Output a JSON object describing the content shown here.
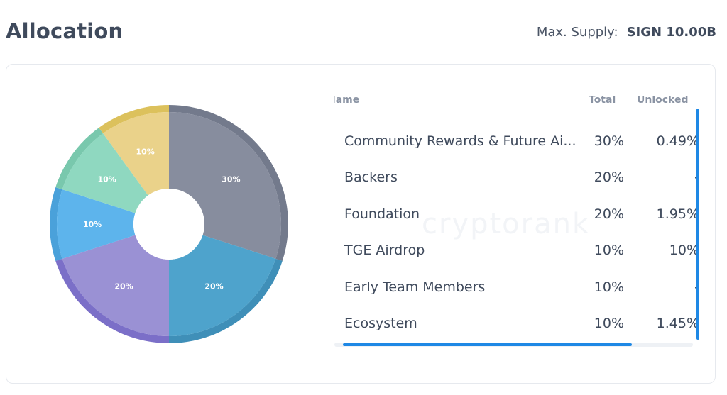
{
  "header": {
    "title": "Allocation",
    "supply_label": "Max. Supply:",
    "supply_value": "SIGN 10.00B"
  },
  "watermark": "cryptorank",
  "table": {
    "columns": [
      "Name",
      "Total",
      "Unlocked"
    ],
    "rows": [
      {
        "name": "Community Rewards & Future Ai...",
        "total": "30%",
        "unlocked": "0.49%"
      },
      {
        "name": "Backers",
        "total": "20%",
        "unlocked": "-"
      },
      {
        "name": "Foundation",
        "total": "20%",
        "unlocked": "1.95%"
      },
      {
        "name": "TGE Airdrop",
        "total": "10%",
        "unlocked": "10%"
      },
      {
        "name": "Early Team Members",
        "total": "10%",
        "unlocked": "-"
      },
      {
        "name": "Ecosystem",
        "total": "10%",
        "unlocked": "1.45%"
      }
    ]
  },
  "chart_data": {
    "type": "pie",
    "donut": true,
    "slices": [
      {
        "label": "30%",
        "value": 30,
        "color": "#878d9e",
        "shadow": "#737a8c"
      },
      {
        "label": "20%",
        "value": 20,
        "color": "#4ea3cc",
        "shadow": "#3f8fb8"
      },
      {
        "label": "20%",
        "value": 20,
        "color": "#9a91d4",
        "shadow": "#7b6fc8"
      },
      {
        "label": "10%",
        "value": 10,
        "color": "#5db4ec",
        "shadow": "#4aa1da"
      },
      {
        "label": "10%",
        "value": 10,
        "color": "#8fd8c0",
        "shadow": "#79c8ad"
      },
      {
        "label": "10%",
        "value": 10,
        "color": "#ead28a",
        "shadow": "#dcc15c"
      }
    ]
  }
}
